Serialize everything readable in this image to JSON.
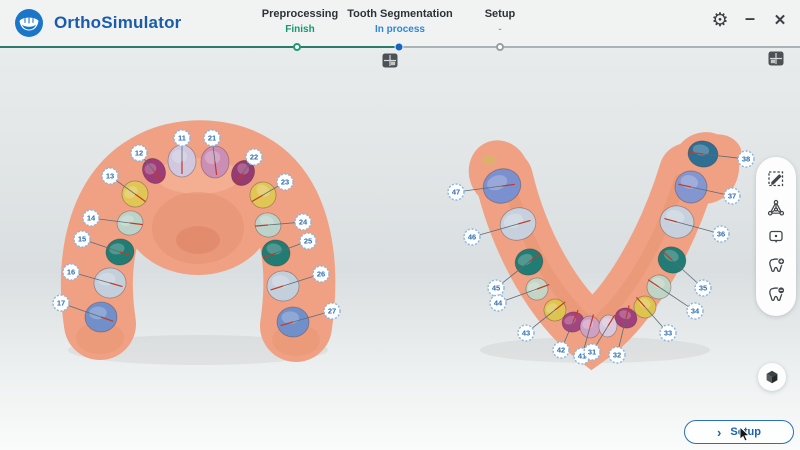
{
  "app": {
    "name": "OrthoSimulator"
  },
  "window_controls": {
    "settings_glyph": "⚙",
    "minimize_glyph": "–",
    "close_glyph": "✕"
  },
  "steps": [
    {
      "label": "Preprocessing",
      "status": "Finish",
      "state": "done"
    },
    {
      "label": "Tooth Segmentation",
      "status": "In process",
      "state": "current"
    },
    {
      "label": "Setup",
      "status": "-",
      "state": "upcoming"
    }
  ],
  "progress_colors": {
    "done": "#2a7d6b",
    "todo": "#aab4b6",
    "current_dot": "#1565c0",
    "done_ring": "#1f9d6e"
  },
  "toolbar": {
    "items": [
      {
        "name": "edit-area-icon"
      },
      {
        "name": "mesh-edit-icon"
      },
      {
        "name": "label-bubble-icon"
      },
      {
        "name": "add-tooth-icon"
      },
      {
        "name": "remove-tooth-icon"
      }
    ]
  },
  "footer": {
    "setup_label": "Setup"
  },
  "scene": {
    "gum_color": "#f0a183",
    "upper_teeth": [
      {
        "id": "11",
        "c": "#cfc8de",
        "t": [
          182,
          161
        ],
        "r": [
          14,
          16
        ],
        "rot": 0,
        "l": [
          182,
          138
        ]
      },
      {
        "id": "21",
        "c": "#cb8fb6",
        "t": [
          215,
          162
        ],
        "r": [
          14,
          16
        ],
        "rot": 0,
        "l": [
          212,
          138
        ]
      },
      {
        "id": "12",
        "c": "#9d3c77",
        "t": [
          154,
          171
        ],
        "r": [
          11,
          13
        ],
        "rot": -30,
        "l": [
          139,
          153
        ]
      },
      {
        "id": "22",
        "c": "#963a72",
        "t": [
          243,
          173
        ],
        "r": [
          11,
          13
        ],
        "rot": 30,
        "l": [
          254,
          157
        ]
      },
      {
        "id": "13",
        "c": "#e0c654",
        "t": [
          135,
          194
        ],
        "r": [
          13,
          13
        ],
        "rot": -35,
        "l": [
          110,
          176
        ]
      },
      {
        "id": "23",
        "c": "#e0c654",
        "t": [
          263,
          195
        ],
        "r": [
          13,
          13
        ],
        "rot": 35,
        "l": [
          285,
          182
        ]
      },
      {
        "id": "14",
        "c": "#bdd3c9",
        "t": [
          130,
          223
        ],
        "r": [
          13,
          12
        ],
        "rot": -18,
        "l": [
          91,
          218
        ]
      },
      {
        "id": "24",
        "c": "#bdd3c9",
        "t": [
          268,
          225
        ],
        "r": [
          13,
          12
        ],
        "rot": 18,
        "l": [
          303,
          222
        ]
      },
      {
        "id": "15",
        "c": "#217c73",
        "t": [
          120,
          252
        ],
        "r": [
          14,
          13
        ],
        "rot": -10,
        "l": [
          82,
          239
        ]
      },
      {
        "id": "25",
        "c": "#217c73",
        "t": [
          276,
          253
        ],
        "r": [
          14,
          13
        ],
        "rot": 10,
        "l": [
          308,
          241
        ]
      },
      {
        "id": "16",
        "c": "#c4cfdc",
        "t": [
          110,
          283
        ],
        "r": [
          16,
          15
        ],
        "rot": -6,
        "l": [
          71,
          272
        ]
      },
      {
        "id": "26",
        "c": "#c4cfdc",
        "t": [
          283,
          286
        ],
        "r": [
          16,
          15
        ],
        "rot": 6,
        "l": [
          321,
          274
        ]
      },
      {
        "id": "17",
        "c": "#7190ca",
        "t": [
          101,
          317
        ],
        "r": [
          16,
          15
        ],
        "rot": -3,
        "l": [
          61,
          303
        ]
      },
      {
        "id": "27",
        "c": "#7190ca",
        "t": [
          293,
          322
        ],
        "r": [
          16,
          15
        ],
        "rot": 3,
        "l": [
          332,
          311
        ]
      }
    ],
    "lower_teeth": [
      {
        "id": "47",
        "c": "#7b90cf",
        "t": [
          502,
          186
        ],
        "r": [
          19,
          17
        ],
        "rot": -20,
        "l": [
          456,
          192
        ]
      },
      {
        "id": "46",
        "c": "#c7d1dd",
        "t": [
          518,
          224
        ],
        "r": [
          18,
          16
        ],
        "rot": -20,
        "l": [
          472,
          237
        ]
      },
      {
        "id": "45",
        "c": "#217c73",
        "t": [
          529,
          262
        ],
        "r": [
          14,
          13
        ],
        "rot": -25,
        "l": [
          496,
          288
        ]
      },
      {
        "id": "44",
        "c": "#c3d6c6",
        "t": [
          537,
          289
        ],
        "r": [
          11,
          11
        ],
        "rot": -25,
        "l": [
          498,
          303
        ]
      },
      {
        "id": "43",
        "c": "#dec44e",
        "t": [
          555,
          310
        ],
        "r": [
          11,
          11
        ],
        "rot": -30,
        "l": [
          526,
          333
        ]
      },
      {
        "id": "42",
        "c": "#a64480",
        "t": [
          573,
          322
        ],
        "r": [
          11,
          10
        ],
        "rot": -20,
        "l": [
          561,
          350
        ]
      },
      {
        "id": "41",
        "c": "#cfa0c2",
        "t": [
          590,
          327
        ],
        "r": [
          10,
          11
        ],
        "rot": -8,
        "l": [
          582,
          356
        ]
      },
      {
        "id": "31",
        "c": "#d9c7db",
        "t": [
          608,
          326
        ],
        "r": [
          9,
          11
        ],
        "rot": 8,
        "l": [
          592,
          352
        ]
      },
      {
        "id": "32",
        "c": "#a13f7a",
        "t": [
          626,
          318
        ],
        "r": [
          11,
          10
        ],
        "rot": 20,
        "l": [
          617,
          355
        ]
      },
      {
        "id": "33",
        "c": "#dec44e",
        "t": [
          645,
          307
        ],
        "r": [
          11,
          11
        ],
        "rot": 30,
        "l": [
          668,
          333
        ]
      },
      {
        "id": "34",
        "c": "#bfd4c5",
        "t": [
          659,
          287
        ],
        "r": [
          12,
          12
        ],
        "rot": 25,
        "l": [
          695,
          311
        ]
      },
      {
        "id": "35",
        "c": "#217c73",
        "t": [
          672,
          260
        ],
        "r": [
          14,
          13
        ],
        "rot": 25,
        "l": [
          703,
          288
        ]
      },
      {
        "id": "36",
        "c": "#c7d1dd",
        "t": [
          677,
          222
        ],
        "r": [
          17,
          16
        ],
        "rot": 15,
        "l": [
          721,
          234
        ]
      },
      {
        "id": "37",
        "c": "#8496d0",
        "t": [
          691,
          187
        ],
        "r": [
          16,
          16
        ],
        "rot": 15,
        "l": [
          732,
          196
        ]
      },
      {
        "id": "38",
        "c": "#2e6f94",
        "t": [
          703,
          154
        ],
        "r": [
          15,
          13
        ],
        "rot": 10,
        "l": [
          746,
          159
        ]
      }
    ]
  }
}
